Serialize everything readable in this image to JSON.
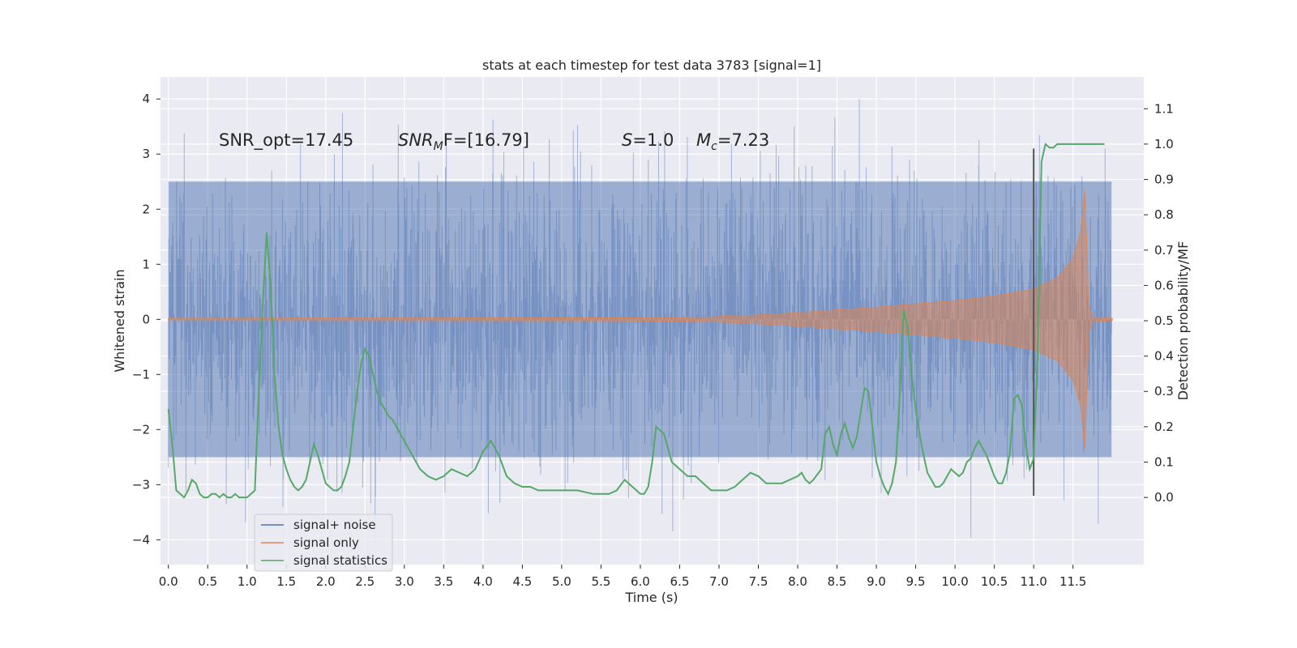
{
  "chart_data": {
    "type": "line",
    "title": "stats at each timestep for test data 3783 [signal=1]",
    "xlabel": "Time (s)",
    "ylabel": "Whitened strain",
    "y2label": "Detection probability/MF",
    "xlim": [
      -0.1,
      12.4
    ],
    "ylim": [
      -4.45,
      4.4
    ],
    "y2lim": [
      -0.19,
      1.19
    ],
    "x_ticks": [
      "0.0",
      "0.5",
      "1.0",
      "1.5",
      "2.0",
      "2.5",
      "3.0",
      "3.5",
      "4.0",
      "4.5",
      "5.0",
      "5.5",
      "6.0",
      "6.5",
      "7.0",
      "7.5",
      "8.0",
      "8.5",
      "9.0",
      "9.5",
      "10.0",
      "10.5",
      "11.0",
      "11.5"
    ],
    "y_ticks": [
      "4",
      "3",
      "2",
      "1",
      "0",
      "−1",
      "−2",
      "−3",
      "−4"
    ],
    "y2_ticks": [
      "1.1",
      "1.0",
      "0.9",
      "0.8",
      "0.7",
      "0.6",
      "0.5",
      "0.4",
      "0.3",
      "0.2",
      "0.1",
      "0.0"
    ],
    "grid": true,
    "legend_position": "lower-left",
    "annotations": {
      "snr_opt": "SNR_opt=17.45",
      "snr_mf_base": "SNR",
      "snr_mf_sub": "M",
      "snr_mf_tail": "F=[16.79]",
      "s_sym": "S",
      "s_val": "=1.0",
      "mc_sym": "M",
      "mc_sub": "c",
      "mc_val": "=7.23"
    },
    "vertical_marker_x": 11.0,
    "series": [
      {
        "name": "signal+ noise",
        "color": "#4c72b0",
        "kind": "noise-band",
        "x_range": [
          0.0,
          11.99
        ],
        "typical_range": [
          -2.5,
          2.5
        ],
        "extremes": [
          -4.1,
          4.0
        ]
      },
      {
        "name": "signal only",
        "color": "#dd8452",
        "kind": "chirp-envelope",
        "envelope": {
          "x": [
            0.0,
            6.5,
            7.0,
            7.5,
            8.0,
            8.5,
            9.0,
            9.5,
            10.0,
            10.5,
            11.0,
            11.3,
            11.5,
            11.6,
            11.65,
            11.68,
            11.7,
            11.75,
            12.0
          ],
          "y": [
            0.02,
            0.03,
            0.05,
            0.08,
            0.12,
            0.17,
            0.22,
            0.28,
            0.34,
            0.42,
            0.55,
            0.75,
            1.1,
            1.6,
            2.35,
            1.2,
            0.25,
            0.05,
            0.02
          ]
        }
      },
      {
        "name": "signal statistics",
        "color": "#55a868",
        "kind": "line",
        "x": [
          0.0,
          0.05,
          0.1,
          0.15,
          0.2,
          0.25,
          0.3,
          0.35,
          0.4,
          0.45,
          0.5,
          0.55,
          0.6,
          0.65,
          0.7,
          0.75,
          0.8,
          0.85,
          0.9,
          0.95,
          1.0,
          1.05,
          1.1,
          1.15,
          1.2,
          1.25,
          1.3,
          1.35,
          1.4,
          1.45,
          1.5,
          1.55,
          1.6,
          1.65,
          1.7,
          1.75,
          1.8,
          1.85,
          1.9,
          1.95,
          2.0,
          2.05,
          2.1,
          2.15,
          2.2,
          2.25,
          2.3,
          2.35,
          2.4,
          2.45,
          2.5,
          2.55,
          2.6,
          2.65,
          2.7,
          2.75,
          2.8,
          2.85,
          2.9,
          3.0,
          3.1,
          3.2,
          3.3,
          3.4,
          3.5,
          3.6,
          3.7,
          3.8,
          3.85,
          3.9,
          4.0,
          4.1,
          4.2,
          4.3,
          4.4,
          4.5,
          4.6,
          4.7,
          4.8,
          4.9,
          5.0,
          5.2,
          5.4,
          5.5,
          5.6,
          5.7,
          5.8,
          5.9,
          6.0,
          6.05,
          6.1,
          6.15,
          6.2,
          6.3,
          6.4,
          6.5,
          6.6,
          6.7,
          6.8,
          6.9,
          7.0,
          7.1,
          7.2,
          7.3,
          7.4,
          7.5,
          7.6,
          7.7,
          7.8,
          7.9,
          8.0,
          8.05,
          8.1,
          8.15,
          8.2,
          8.3,
          8.35,
          8.4,
          8.45,
          8.5,
          8.55,
          8.6,
          8.65,
          8.7,
          8.75,
          8.8,
          8.85,
          8.9,
          8.95,
          9.0,
          9.05,
          9.1,
          9.15,
          9.2,
          9.25,
          9.3,
          9.35,
          9.4,
          9.45,
          9.5,
          9.55,
          9.6,
          9.65,
          9.7,
          9.75,
          9.8,
          9.85,
          9.9,
          9.95,
          10.0,
          10.05,
          10.1,
          10.15,
          10.2,
          10.25,
          10.3,
          10.35,
          10.4,
          10.45,
          10.5,
          10.55,
          10.6,
          10.65,
          10.7,
          10.75,
          10.8,
          10.85,
          10.9,
          10.95,
          11.0,
          11.05,
          11.1,
          11.15,
          11.2,
          11.25,
          11.3,
          11.4,
          11.5,
          11.6,
          11.7,
          11.8,
          11.9
        ],
        "y": [
          0.25,
          0.15,
          0.02,
          0.01,
          0.0,
          0.02,
          0.05,
          0.04,
          0.01,
          0.0,
          0.0,
          0.01,
          0.01,
          0.0,
          0.01,
          0.0,
          0.0,
          0.01,
          0.0,
          0.0,
          0.0,
          0.01,
          0.02,
          0.3,
          0.55,
          0.75,
          0.6,
          0.35,
          0.2,
          0.12,
          0.08,
          0.05,
          0.03,
          0.02,
          0.03,
          0.05,
          0.1,
          0.15,
          0.12,
          0.08,
          0.04,
          0.03,
          0.02,
          0.02,
          0.03,
          0.06,
          0.1,
          0.2,
          0.3,
          0.38,
          0.42,
          0.4,
          0.35,
          0.3,
          0.27,
          0.25,
          0.23,
          0.22,
          0.2,
          0.16,
          0.12,
          0.08,
          0.06,
          0.05,
          0.06,
          0.08,
          0.07,
          0.06,
          0.07,
          0.08,
          0.13,
          0.16,
          0.12,
          0.06,
          0.04,
          0.03,
          0.03,
          0.02,
          0.02,
          0.02,
          0.02,
          0.02,
          0.01,
          0.01,
          0.01,
          0.02,
          0.05,
          0.03,
          0.01,
          0.01,
          0.03,
          0.1,
          0.2,
          0.18,
          0.1,
          0.08,
          0.06,
          0.06,
          0.04,
          0.02,
          0.02,
          0.02,
          0.03,
          0.05,
          0.07,
          0.06,
          0.04,
          0.04,
          0.04,
          0.05,
          0.06,
          0.07,
          0.05,
          0.04,
          0.05,
          0.08,
          0.18,
          0.2,
          0.15,
          0.12,
          0.18,
          0.21,
          0.17,
          0.14,
          0.17,
          0.24,
          0.31,
          0.3,
          0.2,
          0.1,
          0.06,
          0.03,
          0.01,
          0.04,
          0.1,
          0.3,
          0.53,
          0.48,
          0.35,
          0.25,
          0.18,
          0.12,
          0.07,
          0.05,
          0.03,
          0.03,
          0.04,
          0.06,
          0.08,
          0.07,
          0.06,
          0.07,
          0.1,
          0.11,
          0.14,
          0.16,
          0.14,
          0.12,
          0.09,
          0.06,
          0.04,
          0.04,
          0.07,
          0.13,
          0.28,
          0.29,
          0.26,
          0.15,
          0.08,
          0.11,
          0.4,
          0.95,
          1.0,
          0.99,
          0.99,
          1.0,
          1.0,
          1.0,
          1.0,
          1.0,
          1.0,
          1.0
        ]
      }
    ]
  }
}
